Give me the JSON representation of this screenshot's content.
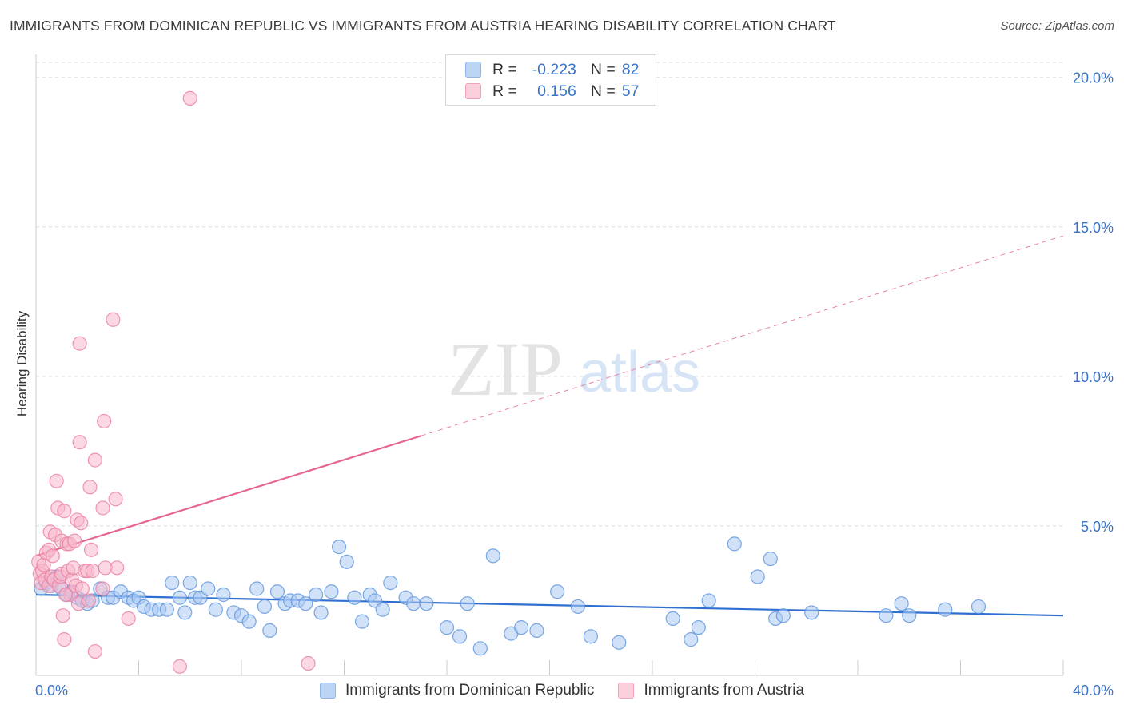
{
  "title": "IMMIGRANTS FROM DOMINICAN REPUBLIC VS IMMIGRANTS FROM AUSTRIA HEARING DISABILITY CORRELATION CHART",
  "source": "Source: ZipAtlas.com",
  "watermark": {
    "zip": "ZIP",
    "atlas": "atlas"
  },
  "legend": {
    "r_label": "R =",
    "n_label": "N =",
    "rows": [
      {
        "r": "-0.223",
        "n": "82",
        "color": "#a9c8f2"
      },
      {
        "r": "0.156",
        "n": "57",
        "color": "#f7b8cc"
      }
    ]
  },
  "colors": {
    "blue_fill": "#a9c8f2",
    "blue_stroke": "#5b94dd",
    "blue_line": "#2f6fd0",
    "pink_fill": "#f7b8cc",
    "pink_stroke": "#eb7da0",
    "pink_line": "#e5678f",
    "grid": "#dddddd",
    "axis_text": "#3b73c8"
  },
  "chart_data": {
    "type": "scatter",
    "title": "IMMIGRANTS FROM DOMINICAN REPUBLIC VS IMMIGRANTS FROM AUSTRIA HEARING DISABILITY CORRELATION CHART",
    "xlabel": "",
    "ylabel": "Hearing Disability",
    "xlim": [
      0,
      40
    ],
    "ylim": [
      0,
      20.5
    ],
    "x_tick_labels": [
      "0.0%",
      "40.0%"
    ],
    "y_ticks": [
      5,
      10,
      15,
      20
    ],
    "y_tick_labels": [
      "5.0%",
      "10.0%",
      "15.0%",
      "20.0%"
    ],
    "grid": true,
    "series": [
      {
        "name": "Immigrants from Dominican Republic",
        "color": "#a9c8f2",
        "trend": {
          "x0": 0,
          "y0": 2.7,
          "x1": 40,
          "y1": 2.0,
          "solid_until": 40
        },
        "points": [
          [
            0.2,
            2.9
          ],
          [
            0.4,
            3.1
          ],
          [
            0.6,
            3.0
          ],
          [
            0.8,
            3.3
          ],
          [
            1.0,
            2.9
          ],
          [
            1.2,
            2.7
          ],
          [
            1.4,
            2.8
          ],
          [
            1.6,
            2.6
          ],
          [
            1.8,
            2.5
          ],
          [
            2.0,
            2.4
          ],
          [
            2.2,
            2.5
          ],
          [
            2.5,
            2.9
          ],
          [
            2.8,
            2.6
          ],
          [
            3.0,
            2.6
          ],
          [
            3.3,
            2.8
          ],
          [
            3.6,
            2.6
          ],
          [
            3.8,
            2.5
          ],
          [
            4.0,
            2.6
          ],
          [
            4.2,
            2.3
          ],
          [
            4.5,
            2.2
          ],
          [
            4.8,
            2.2
          ],
          [
            5.1,
            2.2
          ],
          [
            5.3,
            3.1
          ],
          [
            5.6,
            2.6
          ],
          [
            5.8,
            2.1
          ],
          [
            6.0,
            3.1
          ],
          [
            6.2,
            2.6
          ],
          [
            6.4,
            2.6
          ],
          [
            6.7,
            2.9
          ],
          [
            7.0,
            2.2
          ],
          [
            7.3,
            2.7
          ],
          [
            7.7,
            2.1
          ],
          [
            8.0,
            2.0
          ],
          [
            8.3,
            1.8
          ],
          [
            8.6,
            2.9
          ],
          [
            8.9,
            2.3
          ],
          [
            9.1,
            1.5
          ],
          [
            9.4,
            2.8
          ],
          [
            9.7,
            2.4
          ],
          [
            9.9,
            2.5
          ],
          [
            10.2,
            2.5
          ],
          [
            10.5,
            2.4
          ],
          [
            10.9,
            2.7
          ],
          [
            11.1,
            2.1
          ],
          [
            11.5,
            2.8
          ],
          [
            11.8,
            4.3
          ],
          [
            12.1,
            3.8
          ],
          [
            12.4,
            2.6
          ],
          [
            12.7,
            1.8
          ],
          [
            13.0,
            2.7
          ],
          [
            13.2,
            2.5
          ],
          [
            13.5,
            2.2
          ],
          [
            13.8,
            3.1
          ],
          [
            14.4,
            2.6
          ],
          [
            14.7,
            2.4
          ],
          [
            15.2,
            2.4
          ],
          [
            16.0,
            1.6
          ],
          [
            16.5,
            1.3
          ],
          [
            16.8,
            2.4
          ],
          [
            17.3,
            0.9
          ],
          [
            17.8,
            4.0
          ],
          [
            18.5,
            1.4
          ],
          [
            18.9,
            1.6
          ],
          [
            19.5,
            1.5
          ],
          [
            20.3,
            2.8
          ],
          [
            21.1,
            2.3
          ],
          [
            21.6,
            1.3
          ],
          [
            22.7,
            1.1
          ],
          [
            24.8,
            1.9
          ],
          [
            25.5,
            1.2
          ],
          [
            25.8,
            1.6
          ],
          [
            26.2,
            2.5
          ],
          [
            27.2,
            4.4
          ],
          [
            28.1,
            3.3
          ],
          [
            28.6,
            3.9
          ],
          [
            28.8,
            1.9
          ],
          [
            29.1,
            2.0
          ],
          [
            30.2,
            2.1
          ],
          [
            33.1,
            2.0
          ],
          [
            33.7,
            2.4
          ],
          [
            34.0,
            2.0
          ],
          [
            35.4,
            2.2
          ],
          [
            36.7,
            2.3
          ]
        ]
      },
      {
        "name": "Immigrants from Austria",
        "color": "#f7b8cc",
        "trend": {
          "x0": 0,
          "y0": 4.0,
          "x1": 40,
          "y1": 14.7,
          "solid_until": 15
        },
        "points": [
          [
            0.1,
            3.8
          ],
          [
            0.15,
            3.4
          ],
          [
            0.2,
            3.1
          ],
          [
            0.25,
            3.5
          ],
          [
            0.3,
            3.7
          ],
          [
            0.35,
            3.2
          ],
          [
            0.4,
            4.1
          ],
          [
            0.5,
            4.2
          ],
          [
            0.5,
            3.0
          ],
          [
            0.55,
            4.8
          ],
          [
            0.6,
            3.3
          ],
          [
            0.65,
            4.0
          ],
          [
            0.7,
            3.2
          ],
          [
            0.75,
            4.7
          ],
          [
            0.8,
            6.5
          ],
          [
            0.85,
            5.6
          ],
          [
            0.9,
            3.0
          ],
          [
            0.95,
            3.3
          ],
          [
            1.0,
            3.4
          ],
          [
            1.0,
            4.5
          ],
          [
            1.05,
            2.0
          ],
          [
            1.1,
            1.2
          ],
          [
            1.1,
            5.5
          ],
          [
            1.2,
            4.4
          ],
          [
            1.25,
            3.5
          ],
          [
            1.3,
            4.4
          ],
          [
            1.35,
            2.7
          ],
          [
            1.4,
            3.2
          ],
          [
            1.45,
            3.6
          ],
          [
            1.5,
            4.5
          ],
          [
            1.55,
            3.0
          ],
          [
            1.6,
            5.2
          ],
          [
            1.65,
            2.4
          ],
          [
            1.7,
            7.8
          ],
          [
            1.7,
            11.1
          ],
          [
            1.75,
            5.1
          ],
          [
            1.8,
            2.9
          ],
          [
            1.9,
            3.5
          ],
          [
            2.0,
            3.5
          ],
          [
            2.05,
            2.5
          ],
          [
            2.1,
            6.3
          ],
          [
            2.15,
            4.2
          ],
          [
            2.2,
            3.5
          ],
          [
            2.3,
            0.8
          ],
          [
            2.3,
            7.2
          ],
          [
            2.6,
            2.9
          ],
          [
            2.6,
            5.6
          ],
          [
            2.65,
            8.5
          ],
          [
            2.7,
            3.6
          ],
          [
            3.0,
            11.9
          ],
          [
            3.1,
            5.9
          ],
          [
            3.15,
            3.6
          ],
          [
            3.6,
            1.9
          ],
          [
            5.6,
            0.3
          ],
          [
            6.0,
            19.3
          ],
          [
            10.6,
            0.4
          ],
          [
            1.15,
            2.7
          ]
        ]
      }
    ]
  },
  "bottom_legend": [
    {
      "label": "Immigrants from Dominican Republic",
      "color": "#a9c8f2"
    },
    {
      "label": "Immigrants from Austria",
      "color": "#f7b8cc"
    }
  ]
}
